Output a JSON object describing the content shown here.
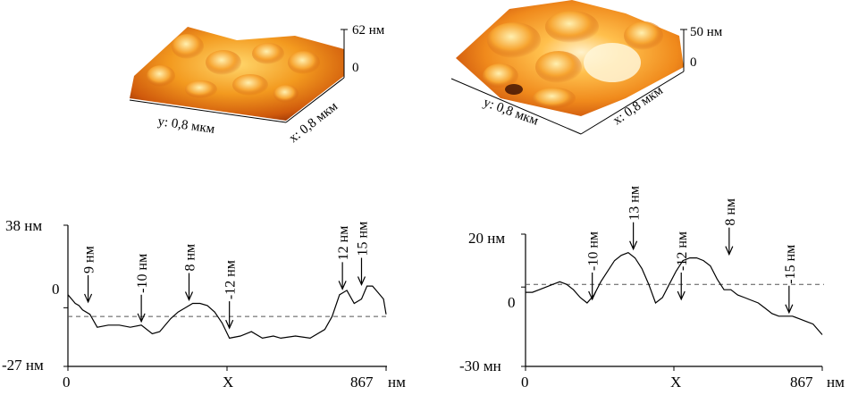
{
  "afm_left": {
    "z_max": "62 нм",
    "z_min": "0",
    "x_axis": "x: 0,8 мкм",
    "y_axis": "y: 0,8 мкм"
  },
  "afm_right": {
    "z_max": "50 нм",
    "z_min": "0",
    "x_axis": "x: 0,8 мкм",
    "y_axis": "y: 0,8 мкм"
  },
  "chart_data": [
    {
      "type": "line",
      "x_unit": "нм",
      "y_unit": "нм",
      "y_tick_labels": [
        "38 нм",
        "0",
        "-27 нм"
      ],
      "x_tick_labels": [
        "0",
        "X",
        "867",
        "нм"
      ],
      "xlim": [
        0,
        867
      ],
      "ylim": [
        -27,
        38
      ],
      "baseline": -4,
      "series": [
        {
          "x": [
            0,
            10,
            20,
            30,
            40,
            60,
            80,
            110,
            140,
            170,
            200,
            230,
            250,
            280,
            300,
            320,
            340,
            360,
            380,
            400,
            420,
            440,
            470,
            500,
            530,
            560,
            580,
            620,
            660,
            700,
            720,
            740,
            760,
            780,
            800,
            815,
            830,
            845,
            860,
            867
          ],
          "y": [
            6,
            4,
            2,
            1,
            -1,
            -3,
            -9,
            -8,
            -8,
            -9,
            -8,
            -12,
            -11,
            -5,
            -2,
            0,
            2,
            2,
            1,
            -2,
            -7,
            -14,
            -13,
            -11,
            -14,
            -13,
            -14,
            -13,
            -14,
            -10,
            -4,
            6,
            8,
            2,
            4,
            10,
            10,
            7,
            4,
            -3
          ]
        }
      ],
      "annotations": [
        {
          "label": "9 нм",
          "x": 55,
          "y": 1
        },
        {
          "label": "-10 нм",
          "x": 200,
          "y": -8
        },
        {
          "label": "8 нм",
          "x": 330,
          "y": 2
        },
        {
          "label": "-12 нм",
          "x": 440,
          "y": -11
        },
        {
          "label": "12 нм",
          "x": 748,
          "y": 7
        },
        {
          "label": "15 нм",
          "x": 800,
          "y": 9
        }
      ]
    },
    {
      "type": "line",
      "x_unit": "нм",
      "y_unit": "нм",
      "y_tick_labels": [
        "20 нм",
        "0",
        "-30 мн"
      ],
      "x_tick_labels": [
        "0",
        "X",
        "867",
        "нм"
      ],
      "xlim": [
        0,
        867
      ],
      "ylim": [
        -30,
        20
      ],
      "baseline": 1,
      "series": [
        {
          "x": [
            0,
            20,
            40,
            60,
            80,
            100,
            120,
            140,
            160,
            180,
            200,
            220,
            240,
            260,
            280,
            300,
            320,
            340,
            360,
            380,
            400,
            420,
            440,
            460,
            480,
            500,
            520,
            540,
            560,
            580,
            600,
            620,
            640,
            660,
            680,
            700,
            720,
            740,
            760,
            780,
            800,
            820,
            840,
            867
          ],
          "y": [
            -2,
            -2,
            -1,
            0,
            1,
            2,
            1,
            -1,
            -4,
            -6,
            -3,
            2,
            6,
            10,
            12,
            13,
            11,
            7,
            1,
            -6,
            -4,
            1,
            6,
            10,
            11,
            11,
            10,
            8,
            3,
            -1,
            -1,
            -3,
            -4,
            -5,
            -6,
            -8,
            -10,
            -11,
            -11,
            -11,
            -12,
            -13,
            -14,
            -18
          ]
        }
      ],
      "annotations": [
        {
          "label": "-10 нм",
          "x": 195,
          "y": -6
        },
        {
          "label": "13 нм",
          "x": 315,
          "y": 13
        },
        {
          "label": "-12 нм",
          "x": 455,
          "y": -6
        },
        {
          "label": "8 нм",
          "x": 595,
          "y": 11
        },
        {
          "label": "-15 нм",
          "x": 770,
          "y": -11
        }
      ]
    }
  ]
}
